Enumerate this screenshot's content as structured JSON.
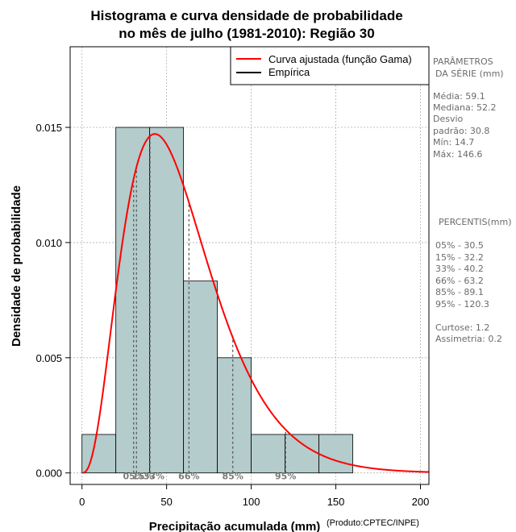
{
  "chart_data": {
    "type": "bar",
    "title": [
      "Histograma e curva densidade de probabilidade",
      "no mês de julho (1981-2010): Região 30"
    ],
    "xlabel": "Precipitação acumulada (mm)",
    "ylabel": "Densidade de probabilidade",
    "credit": "(Produto:CPTEC/INPE)",
    "xlim": [
      -7,
      205
    ],
    "ylim": [
      -0.0005,
      0.0185
    ],
    "xticks": [
      0,
      50,
      100,
      150,
      200
    ],
    "yticks": [
      0.0,
      0.005,
      0.01,
      0.015
    ],
    "ytick_labels": [
      "0.000",
      "0.005",
      "0.010",
      "0.015"
    ],
    "grid": true,
    "bins": [
      {
        "from": 0,
        "to": 20,
        "density": 0.00167
      },
      {
        "from": 20,
        "to": 40,
        "density": 0.015
      },
      {
        "from": 40,
        "to": 60,
        "density": 0.015
      },
      {
        "from": 60,
        "to": 80,
        "density": 0.00833
      },
      {
        "from": 80,
        "to": 100,
        "density": 0.005
      },
      {
        "from": 100,
        "to": 120,
        "density": 0.00167
      },
      {
        "from": 120,
        "to": 140,
        "density": 0.00167
      },
      {
        "from": 140,
        "to": 160,
        "density": 0.00167
      }
    ],
    "gamma_curve": {
      "name": "Curva ajustada (função Gama)",
      "color": "#ff0000",
      "mean": 59.1,
      "sd": 30.8
    },
    "empirical": {
      "name": "Empírica",
      "color": "#000000"
    },
    "percentiles": [
      {
        "label": "05%",
        "value": 30.5
      },
      {
        "label": "15%",
        "value": 32.2
      },
      {
        "label": "33%",
        "value": 40.2
      },
      {
        "label": "66%",
        "value": 63.2
      },
      {
        "label": "85%",
        "value": 89.1
      },
      {
        "label": "95%",
        "value": 120.3
      }
    ],
    "percentile_axis_labels": [
      {
        "text": "05%",
        "x": 30.5
      },
      {
        "text": "15%",
        "x": 36.0
      },
      {
        "text": "33%",
        "x": 42.5
      },
      {
        "text": "66%",
        "x": 63.2
      },
      {
        "text": "85%",
        "x": 89.1
      },
      {
        "text": "95%",
        "x": 120.3
      }
    ],
    "legend_position": "top-right",
    "colors": {
      "bar_fill": "#b4cccb",
      "bar_stroke": "#000000",
      "grid": "#b0b0b0",
      "percentile_line": "#555555"
    }
  },
  "side_panel": {
    "params_title_1": "PARÂMETROS",
    "params_title_2": "DA SÉRIE (mm)",
    "media": "Média:  59.1",
    "mediana": "Mediana:  52.2",
    "desvio_1": "Desvio",
    "desvio_2": "padrão:  30.8",
    "min": "Mín:  14.7",
    "max": "Máx:  146.6",
    "percentis_title": "PERCENTIS(mm)",
    "p05": "05% -   30.5",
    "p15": "15% -   32.2",
    "p33": "33% -   40.2",
    "p66": "66% -   63.2",
    "p85": "85% -   89.1",
    "p95": "95% -   120.3",
    "curtose": "Curtose:  1.2",
    "assimetria": "Assimetria:  0.2"
  }
}
